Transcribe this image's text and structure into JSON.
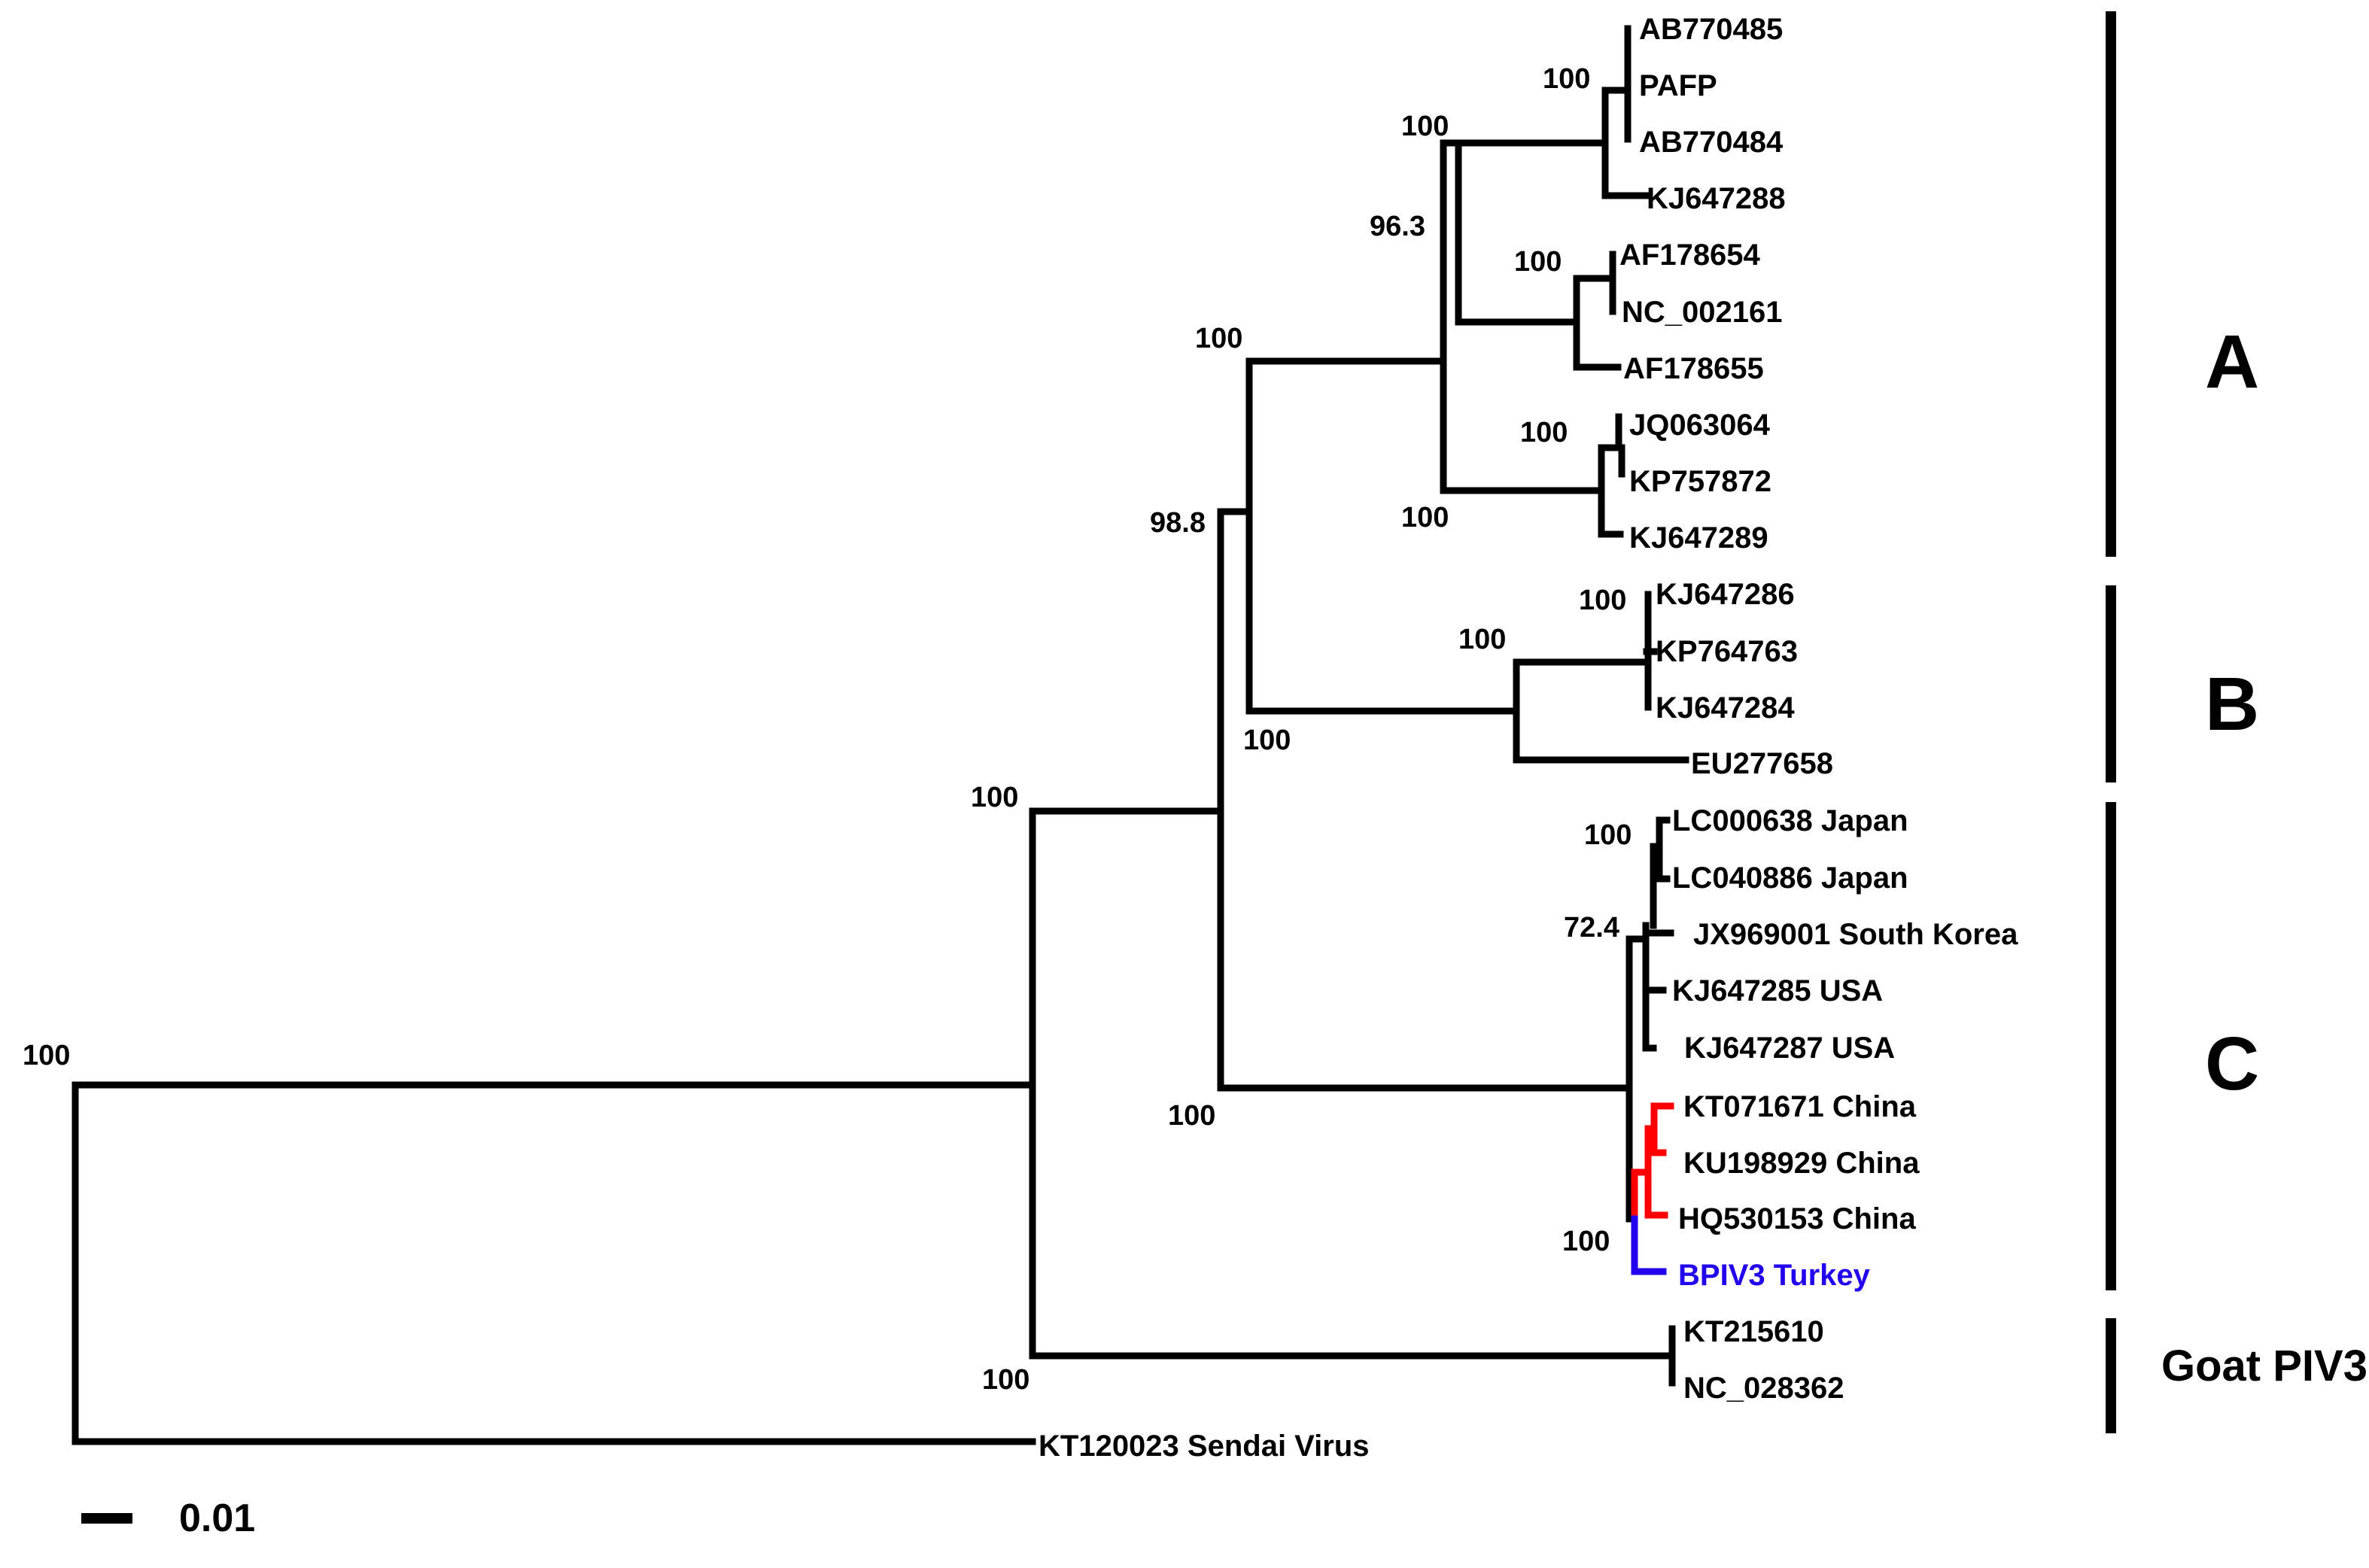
{
  "colors": {
    "branch": "#000000",
    "china_clade": "#ff0000",
    "turkey": "#2200ee",
    "text": "#000000"
  },
  "taxa": {
    "t01": "AB770485",
    "t02": "PAFP",
    "t03": "AB770484",
    "t04": "KJ647288",
    "t05": "AF178654",
    "t06": "NC_002161",
    "t07": "AF178655",
    "t08": "JQ063064",
    "t09": "KP757872",
    "t10": "KJ647289",
    "t11": "KJ647286",
    "t12": "KP764763",
    "t13": "KJ647284",
    "t14": "EU277658",
    "t15": "LC000638 Japan",
    "t16": "LC040886 Japan",
    "t17": "JX969001 South Korea",
    "t18": "KJ647285 USA",
    "t19": "KJ647287 USA",
    "t20": "KT071671 China",
    "t21": "KU198929 China",
    "t22": "HQ530153 China",
    "t23": "BPIV3 Turkey",
    "t24": "KT215610",
    "t25": "NC_028362",
    "t26": "KT120023 Sendai Virus"
  },
  "bootstrap": {
    "b01": "100",
    "b02": "100",
    "b03": "96.3",
    "b04": "100",
    "b05": "100",
    "b06": "100",
    "b07": "100",
    "b08": "98.8",
    "b09": "100",
    "b10": "100",
    "b11": "100",
    "b12": "100",
    "b13": "72.4",
    "b14": "100",
    "b15": "100",
    "b16": "100",
    "b17": "100"
  },
  "clades": {
    "a": "A",
    "b": "B",
    "c": "C",
    "goat": "Goat PIV3"
  },
  "scale": {
    "label": "0.01"
  }
}
